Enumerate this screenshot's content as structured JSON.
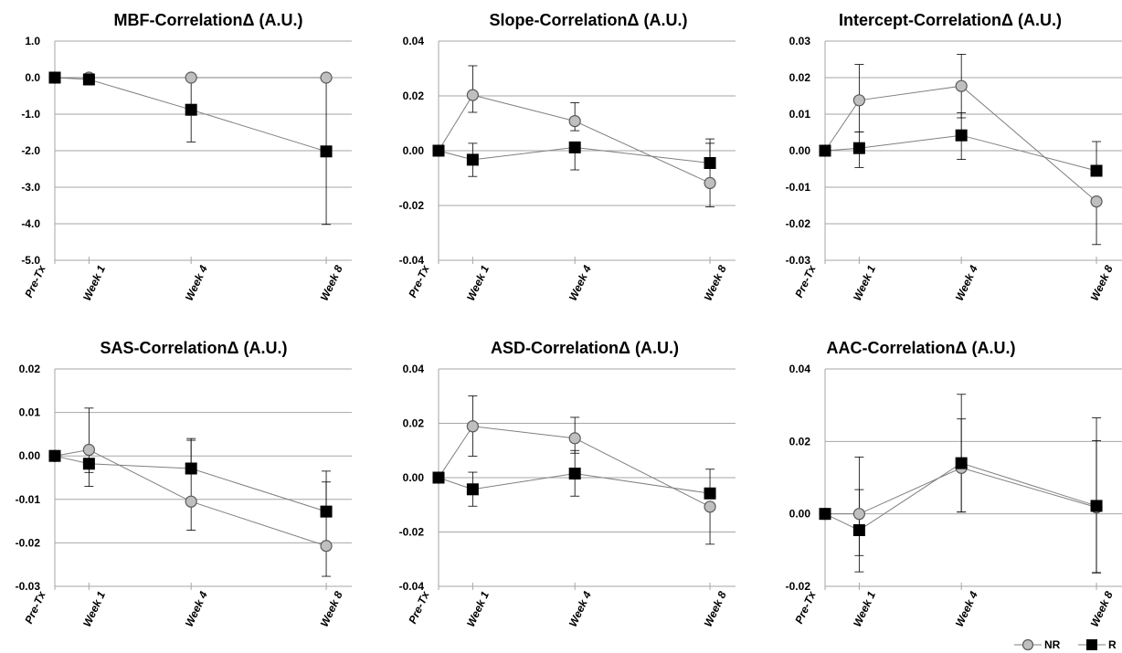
{
  "figure": {
    "colors": {
      "nr_fill": "#bfbfbf",
      "r_fill": "#000000",
      "line": "#7f7f7f",
      "grid": "#a6a6a6",
      "axis": "#a6a6a6"
    },
    "legend": {
      "items": [
        {
          "label": "NR",
          "marker": "circle"
        },
        {
          "label": "R",
          "marker": "square"
        }
      ],
      "placement": "bottom-right"
    }
  },
  "chart_data": [
    {
      "type": "line",
      "title": "MBF-CorrelationΔ (A.U.)",
      "x": [
        0,
        1,
        4,
        8
      ],
      "x_tick_labels": [
        "Pre-Tx",
        "Week 1",
        "Week 4",
        "Week 8"
      ],
      "ylim": [
        -5.0,
        1.0
      ],
      "y_ticks": [
        1.0,
        0.0,
        -1.0,
        -2.0,
        -3.0,
        -4.0,
        -5.0
      ],
      "y_tick_labels": [
        "1.0",
        "0.0",
        "-1.0",
        "-2.0",
        "-3.0",
        "-4.0",
        "-5.0"
      ],
      "grid": true,
      "series": [
        {
          "name": "NR",
          "values": [
            0.0,
            0.0,
            0.0,
            0.0
          ],
          "err_upper": [
            0,
            0,
            0,
            0
          ],
          "err_lower": [
            0,
            0.05,
            0,
            0
          ]
        },
        {
          "name": "R",
          "values": [
            0.0,
            -0.05,
            -0.88,
            -2.02
          ],
          "err_upper": [
            0,
            0,
            0.88,
            2.02
          ],
          "err_lower": [
            0,
            0,
            0.88,
            2.0
          ]
        }
      ]
    },
    {
      "type": "line",
      "title": "Slope-CorrelationΔ (A.U.)",
      "x": [
        0,
        1,
        4,
        8
      ],
      "x_tick_labels": [
        "Pre-Tx",
        "Week 1",
        "Week 4",
        "Week 8"
      ],
      "ylim": [
        -0.04,
        0.04
      ],
      "y_ticks": [
        0.04,
        0.02,
        0.0,
        -0.02,
        -0.04
      ],
      "y_tick_labels": [
        "0.04",
        "0.02",
        "0.00",
        "-0.02",
        "-0.04"
      ],
      "grid": true,
      "series": [
        {
          "name": "NR",
          "values": [
            0.0,
            0.0203,
            0.0108,
            -0.0118
          ],
          "err_upper": [
            0,
            0.0107,
            0.0067,
            0.0145
          ],
          "err_lower": [
            0,
            0.0063,
            0.0035,
            0.0087
          ]
        },
        {
          "name": "R",
          "values": [
            0.0,
            -0.0033,
            0.0012,
            -0.0045
          ],
          "err_upper": [
            0,
            0.006,
            0,
            0.0088
          ],
          "err_lower": [
            0,
            0.0061,
            0.0082,
            0
          ]
        }
      ]
    },
    {
      "type": "line",
      "title": "Intercept-CorrelationΔ (A.U.)",
      "x": [
        0,
        1,
        4,
        8
      ],
      "x_tick_labels": [
        "Pre-Tx",
        "Week 1",
        "Week 4",
        "Week 8"
      ],
      "ylim": [
        -0.03,
        0.03
      ],
      "y_ticks": [
        0.03,
        0.02,
        0.01,
        0.0,
        -0.01,
        -0.02,
        -0.03
      ],
      "y_tick_labels": [
        "0.03",
        "0.02",
        "0.01",
        "0.00",
        "-0.01",
        "-0.02",
        "-0.03"
      ],
      "grid": true,
      "series": [
        {
          "name": "NR",
          "values": [
            0.0,
            0.0138,
            0.0177,
            -0.0139
          ],
          "err_upper": [
            0,
            0.0098,
            0.0087,
            0
          ],
          "err_lower": [
            0,
            0.0087,
            0.0087,
            0.0118
          ]
        },
        {
          "name": "R",
          "values": [
            0.0,
            0.0007,
            0.0042,
            -0.0055
          ],
          "err_upper": [
            0,
            0.0044,
            0.0062,
            0.008
          ],
          "err_lower": [
            0,
            0.0053,
            0.0066,
            0
          ]
        }
      ]
    },
    {
      "type": "line",
      "title": "SAS-CorrelationΔ (A.U.)",
      "x": [
        0,
        1,
        4,
        8
      ],
      "x_tick_labels": [
        "Pre-Tx",
        "Week 1",
        "Week 4",
        "Week 8"
      ],
      "ylim": [
        -0.03,
        0.02
      ],
      "y_ticks": [
        0.02,
        0.01,
        0.0,
        -0.01,
        -0.02,
        -0.03
      ],
      "y_tick_labels": [
        "0.02",
        "0.01",
        "0.00",
        "-0.01",
        "-0.02",
        "-0.03"
      ],
      "grid": true,
      "series": [
        {
          "name": "NR",
          "values": [
            0.0,
            0.0014,
            -0.0105,
            -0.0207
          ],
          "err_upper": [
            0,
            0.0096,
            0.0145,
            0.0172
          ],
          "err_lower": [
            0,
            0.0052,
            0.0066,
            0.007
          ]
        },
        {
          "name": "R",
          "values": [
            0.0,
            -0.0018,
            -0.0029,
            -0.0128
          ],
          "err_upper": [
            0,
            0,
            0.0065,
            0.0068
          ],
          "err_lower": [
            0,
            0.0052,
            0,
            0
          ]
        }
      ]
    },
    {
      "type": "line",
      "title": "ASD-CorrelationΔ (A.U.)",
      "x": [
        0,
        1,
        4,
        8
      ],
      "x_tick_labels": [
        "Pre-Tx",
        "Week 1",
        "Week 4",
        "Week 8"
      ],
      "ylim": [
        -0.04,
        0.04
      ],
      "y_ticks": [
        0.04,
        0.02,
        0.0,
        -0.02,
        -0.04
      ],
      "y_tick_labels": [
        "0.04",
        "0.02",
        "0.00",
        "-0.02",
        "-0.04"
      ],
      "grid": true,
      "series": [
        {
          "name": "NR",
          "values": [
            0.0,
            0.0189,
            0.0145,
            -0.0107
          ],
          "err_upper": [
            0,
            0.0112,
            0.0077,
            0
          ],
          "err_lower": [
            0,
            0.011,
            0.0055,
            0.0138
          ]
        },
        {
          "name": "R",
          "values": [
            0.0,
            -0.0043,
            0.0015,
            -0.0058
          ],
          "err_upper": [
            0,
            0.0063,
            0.0085,
            0.0089
          ],
          "err_lower": [
            0,
            0.0062,
            0.0083,
            0
          ]
        }
      ]
    },
    {
      "type": "line",
      "title": "AAC-CorrelationΔ (A.U.)",
      "x": [
        0,
        1,
        4,
        8
      ],
      "x_tick_labels": [
        "Pre-Tx",
        "Week 1",
        "Week 4",
        "Week 8"
      ],
      "ylim": [
        -0.02,
        0.04
      ],
      "y_ticks": [
        0.04,
        0.02,
        0.0,
        -0.02
      ],
      "y_tick_labels": [
        "0.04",
        "0.02",
        "0.00",
        "-0.02"
      ],
      "grid": true,
      "series": [
        {
          "name": "NR",
          "values": [
            0.0,
            0.0,
            0.0127,
            0.0018
          ],
          "err_upper": [
            0,
            0.0157,
            0.0203,
            0.0247
          ],
          "err_lower": [
            0,
            0.0115,
            0.0122,
            0.018
          ]
        },
        {
          "name": "R",
          "values": [
            0.0,
            -0.0045,
            0.014,
            0.0022
          ],
          "err_upper": [
            0,
            0.0112,
            0.0122,
            0.018
          ],
          "err_lower": [
            0,
            0.0115,
            0.0135,
            0.0185
          ]
        }
      ]
    }
  ]
}
